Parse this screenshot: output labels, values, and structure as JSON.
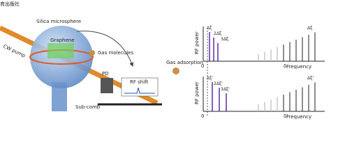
{
  "watermark": "育出版社",
  "left_panel": {
    "sphere_label": "Silica microsphere",
    "graphene": "Graphene",
    "gas": "Gas molecules",
    "pump": "CW pump",
    "detector": "PD",
    "rf_shift": "RF shift",
    "subcomb": "Sub-comb"
  },
  "middle": {
    "gas_adsorption": "Gas adsorption"
  },
  "spectra": [
    {
      "y_label": "RF power",
      "x_label": "Frequency",
      "origin": "0",
      "offset": "δ",
      "spacing_labels": [
        "Δξ",
        "2Δξ",
        "3Δξ"
      ],
      "far_label": "Δξ"
    },
    {
      "y_label": "RF power",
      "x_label": "Frequency",
      "origin": "0",
      "offset": "δ'",
      "spacing_labels": [
        "Δξ'",
        "2Δξ'",
        "3Δξ'"
      ],
      "far_label": "Δξ'"
    }
  ]
}
